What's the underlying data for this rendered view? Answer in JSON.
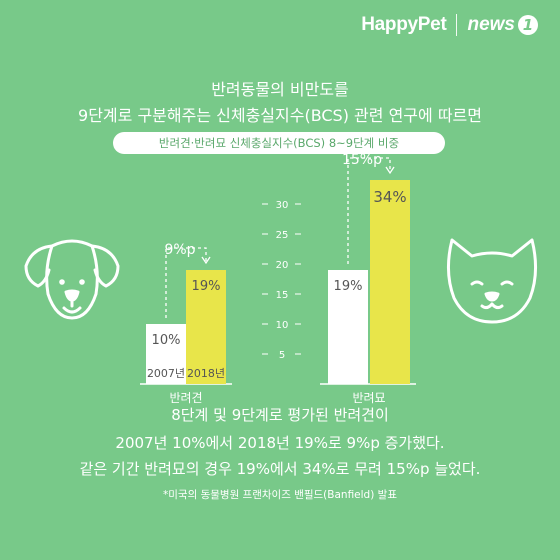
{
  "brand": {
    "logo_text": "HappyPet",
    "partner_text": "news",
    "partner_badge": "1"
  },
  "title": {
    "line1": "반려동물의 비만도를",
    "line2": "9단계로 구분해주는 신체충실지수(BCS) 관련 연구에 따르면"
  },
  "subtitle_pill": "반려견·반려묘 신체충실지수(BCS) 8~9단계 비중",
  "chart_data": {
    "type": "bar",
    "unit": "%",
    "yticks": [
      5,
      10,
      15,
      20,
      25,
      30
    ],
    "ylim": [
      0,
      34
    ],
    "groups": [
      {
        "label": "반려견",
        "bars": [
          {
            "year": "2007년",
            "value": 10,
            "value_label": "10%",
            "color": "#ffffff",
            "text_color": "#555555"
          },
          {
            "year": "2018년",
            "value": 19,
            "value_label": "19%",
            "color": "#e8e54a",
            "text_color": "#555555"
          }
        ],
        "delta_label": "9%p"
      },
      {
        "label": "반려묘",
        "bars": [
          {
            "year": "",
            "value": 19,
            "value_label": "19%",
            "color": "#ffffff",
            "text_color": "#555555"
          },
          {
            "year": "",
            "value": 34,
            "value_label": "34%",
            "color": "#e8e54a",
            "text_color": "#555555"
          }
        ],
        "delta_label": "15%p"
      }
    ]
  },
  "footer": {
    "line1": "8단계 및 9단계로 평가된 반려견이",
    "line2": "2007년 10%에서 2018년 19%로 9%p 증가했다.",
    "line3": "같은 기간 반려묘의 경우 19%에서 34%로 무려 15%p 늘었다.",
    "note": "*미국의 동물병원 프랜차이즈 밴필드(Banfield) 발표"
  },
  "icons": {
    "left": "dog-face-icon",
    "right": "cat-face-icon"
  }
}
